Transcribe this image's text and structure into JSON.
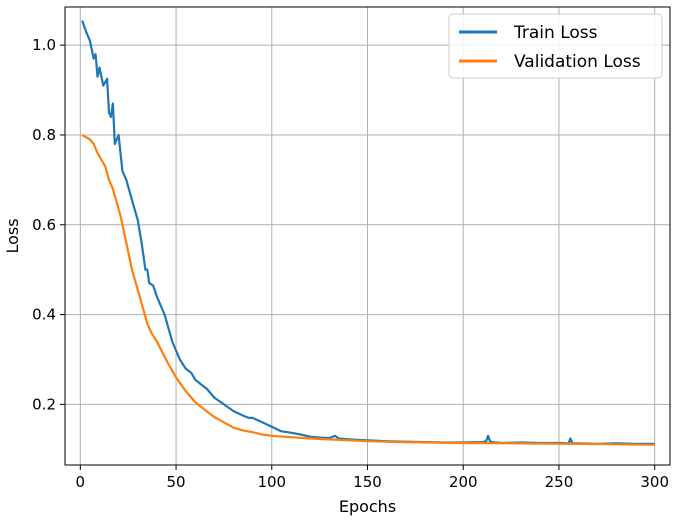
{
  "chart_data": {
    "type": "line",
    "title": "",
    "xlabel": "Epochs",
    "ylabel": "Loss",
    "xlim": [
      -8,
      308
    ],
    "ylim": [
      0.065,
      1.085
    ],
    "xticks": [
      0,
      50,
      100,
      150,
      200,
      250,
      300
    ],
    "xtick_labels": [
      "0",
      "50",
      "100",
      "150",
      "200",
      "250",
      "300"
    ],
    "yticks": [
      0.2,
      0.4,
      0.6,
      0.8,
      1.0
    ],
    "ytick_labels": [
      "0.2",
      "0.4",
      "0.6",
      "0.8",
      "1.0"
    ],
    "grid": true,
    "legend_position": "top-right",
    "series": [
      {
        "name": "Train Loss",
        "color": "#1f77b4",
        "x": [
          1,
          3,
          5,
          7,
          8,
          9,
          10,
          12,
          14,
          15,
          16,
          17,
          18,
          19,
          20,
          22,
          24,
          26,
          28,
          30,
          32,
          34,
          35,
          36,
          38,
          40,
          42,
          44,
          46,
          48,
          50,
          52,
          55,
          58,
          60,
          63,
          66,
          70,
          75,
          80,
          85,
          88,
          90,
          95,
          100,
          105,
          110,
          115,
          120,
          125,
          130,
          133,
          135,
          140,
          145,
          150,
          160,
          170,
          180,
          190,
          200,
          210,
          212,
          213,
          214,
          215,
          220,
          230,
          240,
          250,
          255,
          256,
          257,
          260,
          270,
          280,
          290,
          300
        ],
        "values": [
          1.055,
          1.03,
          1.01,
          0.97,
          0.98,
          0.93,
          0.95,
          0.91,
          0.925,
          0.85,
          0.84,
          0.87,
          0.78,
          0.79,
          0.8,
          0.72,
          0.7,
          0.67,
          0.64,
          0.61,
          0.56,
          0.5,
          0.5,
          0.47,
          0.465,
          0.44,
          0.42,
          0.4,
          0.37,
          0.34,
          0.32,
          0.3,
          0.28,
          0.27,
          0.255,
          0.245,
          0.235,
          0.215,
          0.2,
          0.185,
          0.175,
          0.17,
          0.17,
          0.16,
          0.15,
          0.14,
          0.137,
          0.133,
          0.128,
          0.126,
          0.125,
          0.13,
          0.124,
          0.122,
          0.121,
          0.12,
          0.118,
          0.117,
          0.116,
          0.115,
          0.115,
          0.116,
          0.118,
          0.13,
          0.118,
          0.116,
          0.114,
          0.115,
          0.114,
          0.114,
          0.113,
          0.124,
          0.113,
          0.113,
          0.112,
          0.113,
          0.112,
          0.112
        ]
      },
      {
        "name": "Validation Loss",
        "color": "#ff7f0e",
        "x": [
          1,
          3,
          5,
          7,
          9,
          11,
          13,
          15,
          17,
          19,
          21,
          23,
          25,
          27,
          29,
          31,
          33,
          35,
          37,
          40,
          43,
          46,
          50,
          55,
          60,
          65,
          70,
          75,
          80,
          85,
          90,
          95,
          100,
          110,
          120,
          130,
          140,
          150,
          170,
          200,
          230,
          260,
          280,
          300
        ],
        "values": [
          0.8,
          0.795,
          0.79,
          0.78,
          0.76,
          0.745,
          0.73,
          0.7,
          0.68,
          0.65,
          0.62,
          0.58,
          0.54,
          0.5,
          0.47,
          0.44,
          0.41,
          0.38,
          0.36,
          0.34,
          0.315,
          0.29,
          0.26,
          0.23,
          0.205,
          0.188,
          0.172,
          0.16,
          0.148,
          0.142,
          0.138,
          0.133,
          0.13,
          0.127,
          0.124,
          0.122,
          0.12,
          0.118,
          0.116,
          0.114,
          0.113,
          0.112,
          0.111,
          0.11
        ]
      }
    ]
  }
}
